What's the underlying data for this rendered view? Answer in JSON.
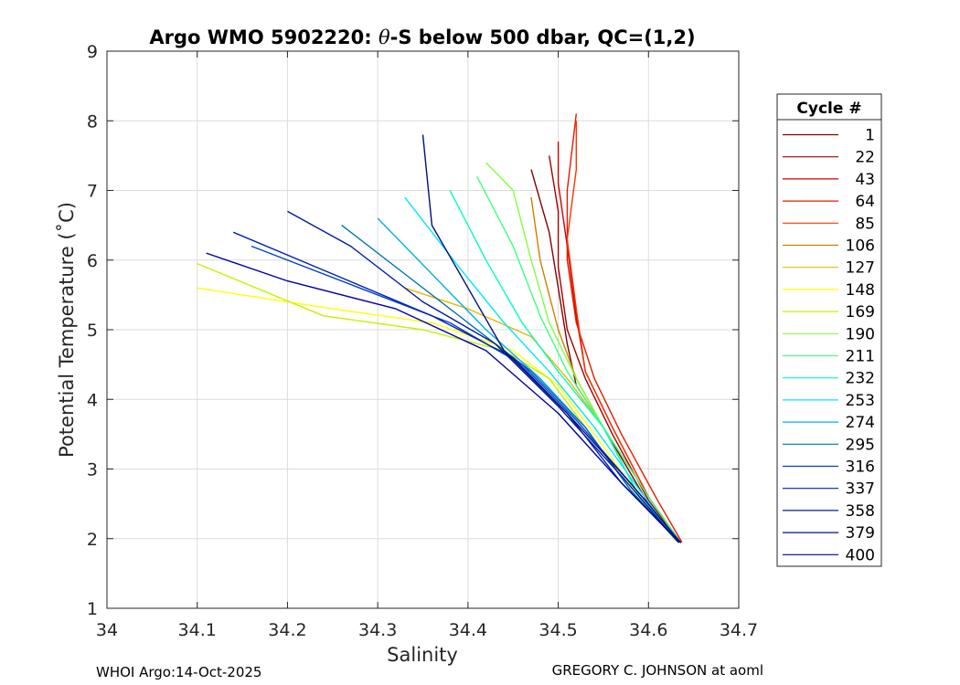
{
  "chart_data": {
    "type": "line",
    "title_prefix": "Argo WMO 5902220: ",
    "title_symbol": "θ",
    "title_suffix": "-S below 500 dbar,  QC=(1,2)",
    "xlabel": "Salinity",
    "ylabel": "Potential Temperature (˚C)",
    "xlim": [
      34.0,
      34.7
    ],
    "ylim": [
      1,
      9
    ],
    "xticks": [
      "34",
      "34.1",
      "34.2",
      "34.3",
      "34.4",
      "34.5",
      "34.6",
      "34.7"
    ],
    "yticks": [
      "1",
      "2",
      "3",
      "4",
      "5",
      "6",
      "7",
      "8",
      "9"
    ],
    "grid": true,
    "legend_title": "Cycle #",
    "legend_position": "outside-right",
    "legend_entries": [
      {
        "label": "1",
        "color": "#7f0000"
      },
      {
        "label": "22",
        "color": "#a60000"
      },
      {
        "label": "43",
        "color": "#cc0000"
      },
      {
        "label": "64",
        "color": "#e61a00"
      },
      {
        "label": "85",
        "color": "#ff3300"
      },
      {
        "label": "106",
        "color": "#cc8000"
      },
      {
        "label": "127",
        "color": "#e6b800"
      },
      {
        "label": "148",
        "color": "#ffff00"
      },
      {
        "label": "169",
        "color": "#c8f000"
      },
      {
        "label": "190",
        "color": "#80ff40"
      },
      {
        "label": "211",
        "color": "#40ff80"
      },
      {
        "label": "232",
        "color": "#00ffc0"
      },
      {
        "label": "253",
        "color": "#00e6ff"
      },
      {
        "label": "274",
        "color": "#00b0e6"
      },
      {
        "label": "295",
        "color": "#0073b3"
      },
      {
        "label": "316",
        "color": "#0040cc"
      },
      {
        "label": "337",
        "color": "#0020b0"
      },
      {
        "label": "358",
        "color": "#001a99"
      },
      {
        "label": "379",
        "color": "#00107f"
      },
      {
        "label": "400",
        "color": "#0000a0"
      }
    ],
    "series": [
      {
        "name": "cycle-1",
        "color": "#7f0000",
        "points": [
          [
            34.636,
            1.95
          ],
          [
            34.6,
            2.5
          ],
          [
            34.55,
            3.6
          ],
          [
            34.52,
            4.2
          ],
          [
            34.51,
            4.8
          ],
          [
            34.5,
            5.6
          ],
          [
            34.49,
            6.4
          ],
          [
            34.47,
            7.3
          ]
        ]
      },
      {
        "name": "cycle-22",
        "color": "#a60000",
        "points": [
          [
            34.634,
            1.96
          ],
          [
            34.6,
            2.55
          ],
          [
            34.56,
            3.5
          ],
          [
            34.53,
            4.3
          ],
          [
            34.51,
            5.0
          ],
          [
            34.5,
            5.9
          ],
          [
            34.5,
            6.7
          ],
          [
            34.49,
            7.5
          ]
        ]
      },
      {
        "name": "cycle-43",
        "color": "#cc0000",
        "points": [
          [
            34.636,
            1.94
          ],
          [
            34.6,
            2.6
          ],
          [
            34.56,
            3.6
          ],
          [
            34.53,
            4.4
          ],
          [
            34.52,
            5.2
          ],
          [
            34.51,
            6.2
          ],
          [
            34.5,
            7.1
          ],
          [
            34.5,
            7.7
          ]
        ]
      },
      {
        "name": "cycle-64",
        "color": "#e61a00",
        "points": [
          [
            34.637,
            1.95
          ],
          [
            34.61,
            2.55
          ],
          [
            34.57,
            3.5
          ],
          [
            34.54,
            4.3
          ],
          [
            34.52,
            5.1
          ],
          [
            34.51,
            6.0
          ],
          [
            34.51,
            7.0
          ],
          [
            34.52,
            8.1
          ]
        ]
      },
      {
        "name": "cycle-85",
        "color": "#ff3300",
        "points": [
          [
            34.635,
            1.95
          ],
          [
            34.6,
            2.6
          ],
          [
            34.56,
            3.6
          ],
          [
            34.53,
            4.4
          ],
          [
            34.52,
            5.3
          ],
          [
            34.51,
            6.3
          ],
          [
            34.52,
            7.3
          ],
          [
            34.52,
            8.0
          ]
        ]
      },
      {
        "name": "cycle-106",
        "color": "#cc8000",
        "points": [
          [
            34.633,
            1.97
          ],
          [
            34.6,
            2.6
          ],
          [
            34.55,
            3.6
          ],
          [
            34.52,
            4.3
          ],
          [
            34.5,
            5.0
          ],
          [
            34.48,
            6.0
          ],
          [
            34.47,
            6.9
          ]
        ]
      },
      {
        "name": "cycle-127",
        "color": "#e6b800",
        "points": [
          [
            34.632,
            1.96
          ],
          [
            34.59,
            2.6
          ],
          [
            34.55,
            3.6
          ],
          [
            34.51,
            4.3
          ],
          [
            34.47,
            4.9
          ],
          [
            34.4,
            5.3
          ],
          [
            34.33,
            5.6
          ]
        ]
      },
      {
        "name": "cycle-148",
        "color": "#ffff00",
        "points": [
          [
            34.63,
            1.97
          ],
          [
            34.59,
            2.6
          ],
          [
            34.54,
            3.5
          ],
          [
            34.5,
            4.2
          ],
          [
            34.45,
            4.7
          ],
          [
            34.36,
            5.1
          ],
          [
            34.25,
            5.3
          ],
          [
            34.1,
            5.6
          ]
        ]
      },
      {
        "name": "cycle-169",
        "color": "#c8f000",
        "points": [
          [
            34.632,
            1.96
          ],
          [
            34.58,
            2.7
          ],
          [
            34.53,
            3.6
          ],
          [
            34.49,
            4.3
          ],
          [
            34.44,
            4.7
          ],
          [
            34.35,
            5.0
          ],
          [
            34.24,
            5.2
          ],
          [
            34.1,
            5.95
          ]
        ]
      },
      {
        "name": "cycle-190",
        "color": "#80ff40",
        "points": [
          [
            34.634,
            1.95
          ],
          [
            34.59,
            2.6
          ],
          [
            34.55,
            3.6
          ],
          [
            34.52,
            4.3
          ],
          [
            34.49,
            5.1
          ],
          [
            34.47,
            6.0
          ],
          [
            34.45,
            7.0
          ],
          [
            34.42,
            7.4
          ]
        ]
      },
      {
        "name": "cycle-211",
        "color": "#40ff80",
        "points": [
          [
            34.635,
            1.96
          ],
          [
            34.6,
            2.6
          ],
          [
            34.55,
            3.6
          ],
          [
            34.51,
            4.4
          ],
          [
            34.48,
            5.2
          ],
          [
            34.45,
            6.2
          ],
          [
            34.41,
            7.2
          ]
        ]
      },
      {
        "name": "cycle-232",
        "color": "#00ffc0",
        "points": [
          [
            34.634,
            1.96
          ],
          [
            34.59,
            2.6
          ],
          [
            34.55,
            3.6
          ],
          [
            34.5,
            4.4
          ],
          [
            34.46,
            5.1
          ],
          [
            34.42,
            6.0
          ],
          [
            34.38,
            7.0
          ]
        ]
      },
      {
        "name": "cycle-253",
        "color": "#00e6ff",
        "points": [
          [
            34.633,
            1.95
          ],
          [
            34.59,
            2.7
          ],
          [
            34.54,
            3.6
          ],
          [
            34.49,
            4.4
          ],
          [
            34.44,
            5.1
          ],
          [
            34.39,
            5.9
          ],
          [
            34.33,
            6.9
          ]
        ]
      },
      {
        "name": "cycle-274",
        "color": "#00b0e6",
        "points": [
          [
            34.632,
            1.96
          ],
          [
            34.58,
            2.7
          ],
          [
            34.53,
            3.6
          ],
          [
            34.48,
            4.3
          ],
          [
            34.42,
            5.0
          ],
          [
            34.36,
            5.8
          ],
          [
            34.3,
            6.6
          ]
        ]
      },
      {
        "name": "cycle-295",
        "color": "#0073b3",
        "points": [
          [
            34.634,
            1.94
          ],
          [
            34.58,
            2.7
          ],
          [
            34.53,
            3.6
          ],
          [
            34.47,
            4.4
          ],
          [
            34.4,
            5.1
          ],
          [
            34.33,
            5.8
          ],
          [
            34.26,
            6.5
          ]
        ]
      },
      {
        "name": "cycle-316",
        "color": "#0040cc",
        "points": [
          [
            34.635,
            1.95
          ],
          [
            34.58,
            2.8
          ],
          [
            34.52,
            3.7
          ],
          [
            34.46,
            4.5
          ],
          [
            34.38,
            5.1
          ],
          [
            34.28,
            5.6
          ],
          [
            34.16,
            6.2
          ]
        ]
      },
      {
        "name": "cycle-337",
        "color": "#0020b0",
        "points": [
          [
            34.634,
            1.96
          ],
          [
            34.57,
            2.8
          ],
          [
            34.51,
            3.8
          ],
          [
            34.45,
            4.6
          ],
          [
            34.36,
            5.2
          ],
          [
            34.25,
            5.8
          ],
          [
            34.14,
            6.4
          ]
        ]
      },
      {
        "name": "cycle-358",
        "color": "#001a99",
        "points": [
          [
            34.633,
            1.95
          ],
          [
            34.57,
            2.9
          ],
          [
            34.5,
            3.9
          ],
          [
            34.43,
            4.8
          ],
          [
            34.35,
            5.4
          ],
          [
            34.27,
            6.2
          ],
          [
            34.2,
            6.7
          ]
        ]
      },
      {
        "name": "cycle-379",
        "color": "#00107f",
        "points": [
          [
            34.636,
            1.94
          ],
          [
            34.58,
            2.8
          ],
          [
            34.51,
            3.8
          ],
          [
            34.44,
            4.7
          ],
          [
            34.4,
            5.6
          ],
          [
            34.36,
            6.5
          ],
          [
            34.35,
            7.8
          ]
        ]
      },
      {
        "name": "cycle-400",
        "color": "#0000a0",
        "points": [
          [
            34.634,
            1.95
          ],
          [
            34.57,
            2.8
          ],
          [
            34.5,
            3.8
          ],
          [
            34.42,
            4.7
          ],
          [
            34.32,
            5.3
          ],
          [
            34.2,
            5.7
          ],
          [
            34.11,
            6.1
          ]
        ]
      }
    ]
  },
  "footer": {
    "left": "WHOI Argo:14-Oct-2025",
    "right": "GREGORY C. JOHNSON at aoml"
  }
}
